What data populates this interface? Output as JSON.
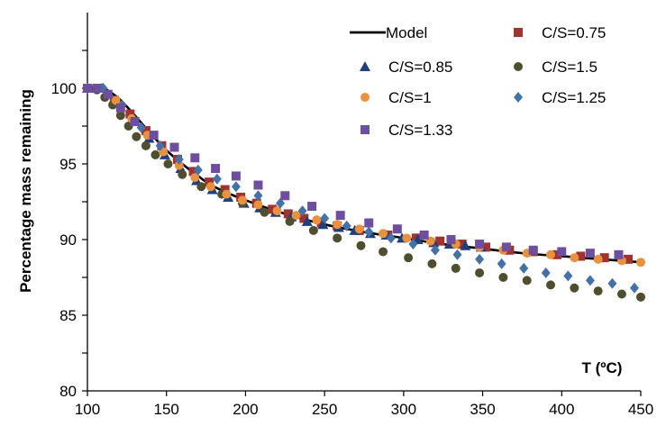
{
  "chart_data": {
    "type": "scatter",
    "xlabel": "T (ºC)",
    "ylabel": "Percentage mass remaining",
    "xlim": [
      100,
      450
    ],
    "ylim": [
      80,
      105
    ],
    "xticks": [
      100,
      150,
      200,
      250,
      300,
      350,
      400,
      450
    ],
    "yticks": [
      80,
      85,
      90,
      95,
      100
    ],
    "grid": false,
    "legend_position": "top-right",
    "model": {
      "name": "Model",
      "color": "#000000",
      "x": [
        100,
        110,
        120,
        130,
        140,
        150,
        160,
        170,
        180,
        200,
        225,
        250,
        275,
        300,
        325,
        350,
        375,
        400,
        425,
        450
      ],
      "y": [
        100,
        100,
        99.3,
        98.2,
        97.0,
        95.9,
        95.0,
        94.2,
        93.5,
        92.6,
        91.7,
        91.0,
        90.5,
        90.1,
        89.7,
        89.4,
        89.1,
        88.9,
        88.7,
        88.5
      ]
    },
    "series": [
      {
        "name": "C/S=0.75",
        "marker": "square",
        "color": "#A0322F",
        "x": [
          107,
          117,
          127,
          137,
          147,
          157,
          167,
          177,
          187,
          197,
          207,
          217,
          227,
          237,
          248,
          258,
          272,
          290,
          308,
          323,
          337,
          352,
          367,
          382,
          397,
          412,
          427,
          442
        ],
        "y": [
          100,
          99.2,
          98.3,
          97.2,
          96.2,
          95.3,
          94.5,
          93.8,
          93.3,
          92.8,
          92.4,
          92.0,
          91.7,
          91.4,
          91.1,
          90.9,
          90.6,
          90.3,
          90.1,
          89.9,
          89.7,
          89.5,
          89.3,
          89.2,
          89.0,
          88.9,
          88.8,
          88.7
        ]
      },
      {
        "name": "C/S=0.85",
        "marker": "triangle",
        "color": "#1F3F7F",
        "x": [
          100,
          109,
          119,
          129,
          139,
          149,
          159,
          169,
          179,
          189,
          199,
          209,
          219,
          229,
          239,
          249,
          259,
          269,
          279,
          289,
          299,
          309,
          319,
          329,
          339,
          349
        ],
        "y": [
          100,
          100,
          99.1,
          97.9,
          96.7,
          95.6,
          94.7,
          93.9,
          93.3,
          92.8,
          92.4,
          92.1,
          91.8,
          91.5,
          91.2,
          91.0,
          90.8,
          90.6,
          90.4,
          90.3,
          90.1,
          90.0,
          89.8,
          89.7,
          89.6,
          89.5
        ]
      },
      {
        "name": "C/S=1.5",
        "marker": "circle",
        "color": "#4F4F2F",
        "x": [
          101,
          106,
          111,
          116,
          121,
          126,
          131,
          137,
          143,
          151,
          160,
          172,
          185,
          198,
          212,
          228,
          243,
          258,
          273,
          287,
          303,
          318,
          333,
          348,
          363,
          378,
          393,
          408,
          423,
          438,
          450
        ],
        "y": [
          100,
          99.9,
          99.4,
          98.9,
          98.2,
          97.5,
          96.8,
          96.2,
          95.6,
          95.0,
          94.3,
          93.5,
          93.0,
          92.4,
          91.8,
          91.2,
          90.6,
          90.1,
          89.6,
          89.2,
          88.8,
          88.4,
          88.1,
          87.8,
          87.5,
          87.3,
          87.0,
          86.8,
          86.6,
          86.4,
          86.2
        ]
      },
      {
        "name": "C/S=1",
        "marker": "circle",
        "color": "#E8913F",
        "x": [
          100,
          108,
          118,
          128,
          138,
          148,
          158,
          168,
          178,
          188,
          198,
          208,
          220,
          232,
          245,
          258,
          272,
          287,
          302,
          317,
          333,
          348,
          363,
          378,
          393,
          408,
          423,
          438,
          450
        ],
        "y": [
          100,
          100,
          99.2,
          98.0,
          96.9,
          95.8,
          94.9,
          94.1,
          93.5,
          93.0,
          92.6,
          92.3,
          91.9,
          91.6,
          91.3,
          91.0,
          90.7,
          90.4,
          90.1,
          89.9,
          89.7,
          89.5,
          89.3,
          89.1,
          89.0,
          88.8,
          88.7,
          88.6,
          88.5
        ]
      },
      {
        "name": "C/S=1.25",
        "marker": "diamond",
        "color": "#4472A8",
        "x": [
          100,
          110,
          122,
          134,
          146,
          158,
          170,
          182,
          194,
          208,
          222,
          236,
          250,
          264,
          278,
          292,
          306,
          320,
          334,
          348,
          362,
          376,
          390,
          404,
          418,
          432,
          446
        ],
        "y": [
          100,
          100,
          98.9,
          97.4,
          96.2,
          95.3,
          94.6,
          94.0,
          93.5,
          92.9,
          92.4,
          91.9,
          91.4,
          90.9,
          90.5,
          90.1,
          89.7,
          89.3,
          89.0,
          88.7,
          88.4,
          88.1,
          87.8,
          87.6,
          87.3,
          87.1,
          86.8
        ]
      },
      {
        "name": "C/S=1.33",
        "marker": "square",
        "color": "#6E4E9E",
        "x": [
          100,
          106,
          113,
          121,
          130,
          142,
          155,
          168,
          181,
          194,
          208,
          225,
          242,
          260,
          278,
          296,
          313,
          330,
          348,
          365,
          382,
          400,
          418,
          436
        ],
        "y": [
          100,
          100,
          99.6,
          98.7,
          97.8,
          96.9,
          96.1,
          95.4,
          94.7,
          94.2,
          93.6,
          92.9,
          92.2,
          91.6,
          91.1,
          90.7,
          90.3,
          90.0,
          89.7,
          89.5,
          89.3,
          89.2,
          89.1,
          89.0
        ]
      }
    ],
    "legend": [
      {
        "label": "Model",
        "kind": "line",
        "color": "#000000"
      },
      {
        "label": "C/S=0.75",
        "kind": "square",
        "color": "#A0322F"
      },
      {
        "label": "C/S=0.85",
        "kind": "triangle",
        "color": "#1F3F7F"
      },
      {
        "label": "C/S=1.5",
        "kind": "circle",
        "color": "#4F4F2F"
      },
      {
        "label": "C/S=1",
        "kind": "circle",
        "color": "#E8913F"
      },
      {
        "label": "C/S=1.25",
        "kind": "diamond",
        "color": "#4472A8"
      },
      {
        "label": "C/S=1.33",
        "kind": "square",
        "color": "#6E4E9E"
      }
    ]
  }
}
